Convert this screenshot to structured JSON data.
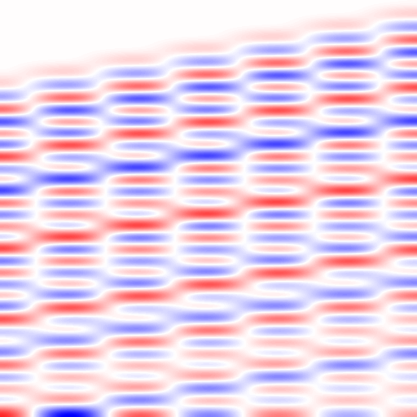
{
  "chart_data": {
    "type": "heatmap",
    "tick_labels": false,
    "color_range": [
      -1,
      1
    ],
    "cells": [
      [
        0,
        0,
        0,
        0,
        0,
        0,
        0,
        0,
        0,
        0,
        0,
        0
      ],
      [
        0,
        0,
        0,
        0,
        0,
        0,
        0,
        0,
        0,
        0,
        0,
        0.2
      ],
      [
        0,
        0,
        0,
        0,
        0,
        0,
        0,
        0,
        0,
        0.2,
        0.2,
        -0.5
      ],
      [
        0,
        0,
        0,
        0,
        0,
        0,
        0,
        0.2,
        0.2,
        -0.5,
        -0.5,
        0.8
      ],
      [
        0,
        0,
        0,
        0,
        0,
        0.2,
        0.2,
        -0.5,
        -0.5,
        0.8,
        0.8,
        -0.9
      ],
      [
        0,
        0,
        0,
        0.2,
        0.2,
        -0.5,
        -0.5,
        0.8,
        0.8,
        -0.9,
        -0.9,
        0.7
      ],
      [
        0,
        0.2,
        0.2,
        -0.5,
        -0.5,
        0.8,
        0.8,
        -0.9,
        -0.9,
        0.7,
        0.7,
        -0.8
      ],
      [
        0.2,
        -0.5,
        -0.5,
        0.8,
        0.8,
        -0.9,
        -0.9,
        0.7,
        0.7,
        -0.8,
        -0.8,
        0.9
      ],
      [
        -0.5,
        0.8,
        0.8,
        -0.9,
        -0.9,
        0.7,
        0.7,
        -0.8,
        -0.8,
        0.9,
        0.9,
        -0.6
      ],
      [
        0.8,
        -0.9,
        -0.9,
        0.7,
        0.7,
        -0.8,
        -0.8,
        0.9,
        0.9,
        -0.6,
        -0.6,
        0.5
      ],
      [
        -0.9,
        0.7,
        0.7,
        -0.8,
        -0.8,
        0.9,
        0.9,
        -0.6,
        -0.6,
        0.5,
        0.5,
        -0.9
      ],
      [
        0.7,
        -0.8,
        -0.8,
        0.9,
        0.9,
        -0.6,
        -0.6,
        0.5,
        0.5,
        -0.9,
        -0.9,
        0.8
      ],
      [
        -0.8,
        0.9,
        0.9,
        -0.6,
        -0.6,
        0.5,
        0.5,
        -0.9,
        -0.9,
        0.8,
        0.8,
        -0.7
      ],
      [
        0.9,
        -0.6,
        -0.6,
        0.5,
        0.5,
        -0.9,
        -0.9,
        0.8,
        0.8,
        -0.7,
        -0.7,
        0.6
      ],
      [
        -0.6,
        0.5,
        0.5,
        -0.9,
        -0.9,
        0.8,
        0.8,
        -0.7,
        -0.7,
        0.6,
        0.6,
        -0.5
      ],
      [
        0.5,
        -0.9,
        -0.9,
        0.8,
        0.8,
        -0.7,
        -0.7,
        0.6,
        0.6,
        -0.5,
        -0.5,
        0.9
      ],
      [
        -0.9,
        0.8,
        0.8,
        -0.7,
        -0.7,
        0.6,
        0.6,
        -0.5,
        -0.5,
        0.9,
        0.9,
        -0.8
      ],
      [
        0.8,
        -0.7,
        -0.7,
        0.6,
        0.6,
        -0.5,
        -0.5,
        0.9,
        0.9,
        -0.8,
        -0.8,
        0.7
      ],
      [
        -0.7,
        0.6,
        0.6,
        -0.5,
        -0.5,
        0.9,
        0.9,
        -0.8,
        -0.8,
        0.7,
        0.7,
        -0.6
      ],
      [
        0.6,
        -0.5,
        -0.5,
        0.9,
        0.9,
        -0.8,
        -0.8,
        0.7,
        0.7,
        -0.6,
        -0.6,
        0.5
      ],
      [
        -0.5,
        0.9,
        0.9,
        -0.8,
        -0.8,
        0.7,
        0.7,
        -0.6,
        -0.6,
        0.5,
        0.5,
        -0.7
      ],
      [
        0.9,
        -0.8,
        -0.8,
        0.7,
        0.7,
        -0.6,
        -0.6,
        0.5,
        0.5,
        -0.7,
        -0.7,
        0.8
      ],
      [
        -0.8,
        0.7,
        0.7,
        -0.6,
        -0.6,
        0.5,
        0.5,
        -0.7,
        -0.7,
        0.8,
        0.8,
        -0.4
      ],
      [
        0.7,
        -0.6,
        -0.6,
        0.5,
        0.5,
        -0.7,
        -0.7,
        0.8,
        0.8,
        -0.4,
        -0.4,
        0.3
      ],
      [
        -0.6,
        0.5,
        0.5,
        -0.7,
        -0.7,
        0.8,
        0.8,
        -0.4,
        -0.4,
        0.3,
        0.3,
        -0.6
      ],
      [
        0.5,
        -0.7,
        -0.7,
        0.8,
        0.8,
        -0.4,
        -0.4,
        0.3,
        0.3,
        -0.6,
        -0.6,
        0.7
      ],
      [
        -0.7,
        0.8,
        0.8,
        -0.4,
        -0.4,
        0.3,
        0.3,
        -0.6,
        -0.6,
        0.7,
        0.7,
        -0.5
      ],
      [
        0.8,
        -0.4,
        -0.4,
        0.3,
        0.3,
        -0.6,
        -0.6,
        0.7,
        0.7,
        -0.5,
        -0.5,
        0.4
      ],
      [
        -0.4,
        0.3,
        0.3,
        -0.6,
        -0.6,
        0.7,
        0.7,
        -0.5,
        -0.5,
        0.4,
        0.4,
        -0.3
      ],
      [
        0.3,
        -0.6,
        -0.6,
        0.7,
        0.7,
        -0.5,
        -0.5,
        0.4,
        0.4,
        -0.3,
        -0.3,
        0.5
      ],
      [
        -0.6,
        0.7,
        0.7,
        -0.5,
        -0.5,
        0.4,
        0.4,
        -0.3,
        -0.3,
        0.5,
        0.5,
        -0.6
      ],
      [
        0.7,
        -0.5,
        -0.5,
        0.4,
        0.4,
        -0.3,
        -0.3,
        0.5,
        0.5,
        -0.6,
        -0.6,
        0.4
      ],
      [
        -0.5,
        0.4,
        0.4,
        -0.3,
        -0.3,
        0.5,
        0.5,
        -0.6,
        -0.6,
        0.4,
        0.4,
        -0.3
      ],
      [
        0.4,
        -0.3,
        -0.3,
        0.5,
        0.5,
        -0.6,
        -0.6,
        0.4,
        0.4,
        -0.3,
        -0.3,
        0.3
      ],
      [
        -0.3,
        0.5,
        0.5,
        -0.6,
        -0.6,
        0.4,
        0.4,
        -0.3,
        -0.3,
        0.3,
        0.3,
        -0.2
      ],
      [
        0.5,
        -0.6,
        -0.6,
        0.4,
        0.4,
        -0.3,
        -0.3,
        0.3,
        0.3,
        -0.2,
        -0.2,
        0.2
      ]
    ]
  }
}
